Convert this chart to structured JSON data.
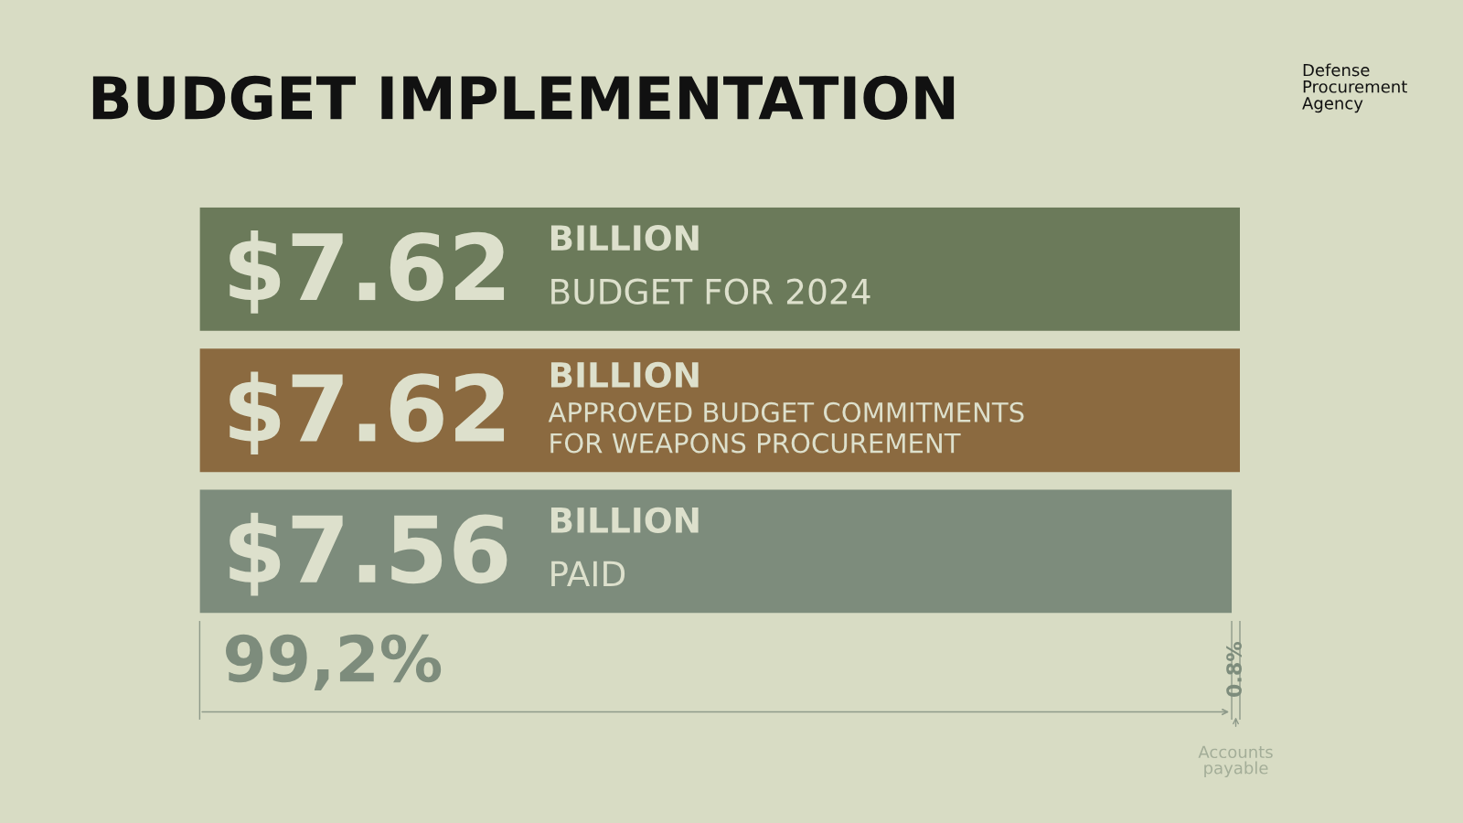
{
  "chart_data": {
    "type": "bar",
    "orientation": "horizontal",
    "title": "BUDGET IMPLEMENTATION",
    "categories": [
      "BILLION\nBUDGET FOR 2024",
      "BILLION\nAPPROVED BUDGET COMMITMENTS\nFOR WEAPONS PROCUREMENT",
      "BILLION\nPAID"
    ],
    "values": [
      7.62,
      7.62,
      7.56
    ],
    "colors": [
      "#6b7a5a",
      "#8b6a40",
      "#7d8c7c"
    ],
    "value_labels": [
      "$7.62",
      "$7.62",
      "$7.56"
    ],
    "annotations": [
      "99,2%",
      "0.8%",
      "Accounts\npayable",
      "Defense\nProcurement\nAgency"
    ],
    "legend": false
  }
}
